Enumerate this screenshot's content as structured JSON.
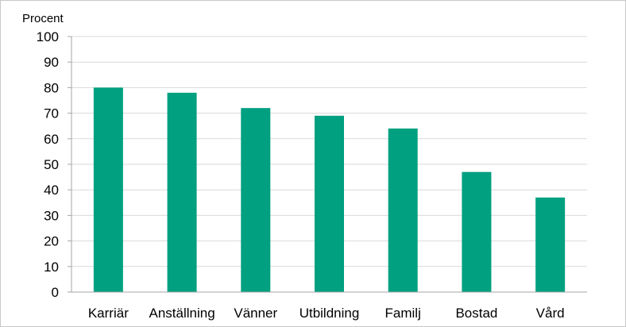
{
  "chart_data": {
    "type": "bar",
    "ylabel": "Procent",
    "categories": [
      "Karriär",
      "Anställning",
      "Vänner",
      "Utbildning",
      "Familj",
      "Bostad",
      "Vård"
    ],
    "values": [
      80,
      78,
      72,
      69,
      64,
      47,
      37
    ],
    "ylim": [
      0,
      100
    ],
    "yticks": [
      0,
      10,
      20,
      30,
      40,
      50,
      60,
      70,
      80,
      90,
      100
    ],
    "grid": true,
    "legend": "none",
    "colors": {
      "bar": "#00a080",
      "grid": "#d9d9d9",
      "axis": "#a6a6a6"
    }
  }
}
